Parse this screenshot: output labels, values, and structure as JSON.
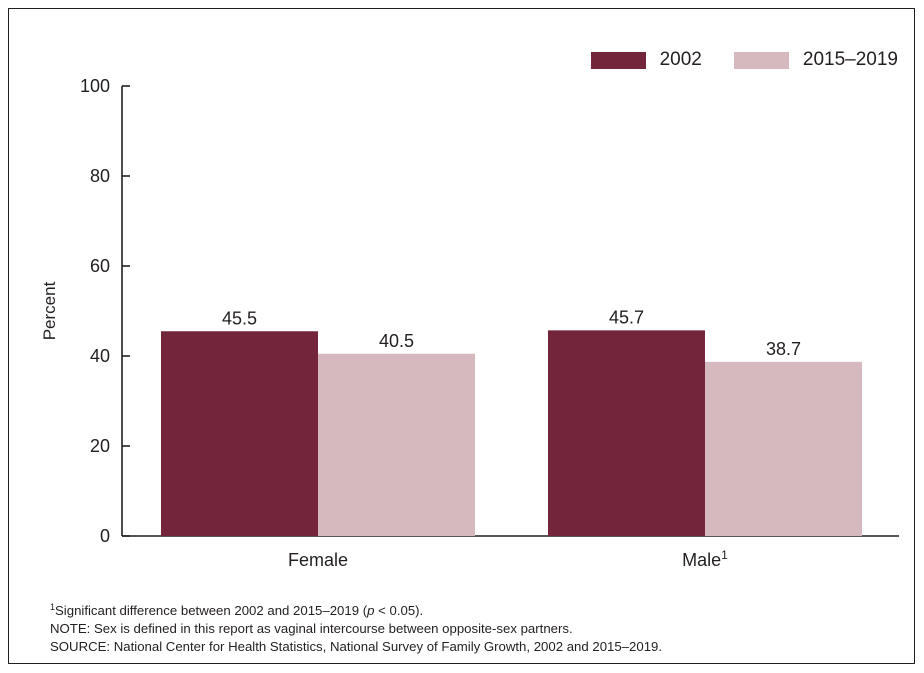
{
  "colors": {
    "series_2002": "#73253c",
    "series_2015_2019": "#d5b9be",
    "text": "#231f20",
    "axis": "#231f20"
  },
  "chart_data": {
    "type": "bar",
    "title": "",
    "xlabel": "",
    "ylabel": "Percent",
    "ylim": [
      0,
      100
    ],
    "yticks": [
      0,
      20,
      40,
      60,
      80,
      100
    ],
    "grid": false,
    "legend_position": "top-right",
    "categories": [
      "Female",
      "Male"
    ],
    "category_superscripts": [
      "",
      "1"
    ],
    "series": [
      {
        "name": "2002",
        "values": [
          45.5,
          45.7
        ],
        "labels": [
          "45.5",
          "45.7"
        ]
      },
      {
        "name": "2015–2019",
        "values": [
          40.5,
          38.7
        ],
        "labels": [
          "40.5",
          "38.7"
        ]
      }
    ]
  },
  "notes": {
    "footnote_marker": "1",
    "footnote_text_a": "Significant difference between 2002 and 2015–2019 (",
    "footnote_p": "p",
    "footnote_text_b": " < 0.05).",
    "note": "NOTE: Sex is defined in this report as vaginal intercourse between opposite-sex partners.",
    "source": "SOURCE: National Center for Health Statistics, National Survey of Family Growth, 2002 and 2015–2019."
  }
}
